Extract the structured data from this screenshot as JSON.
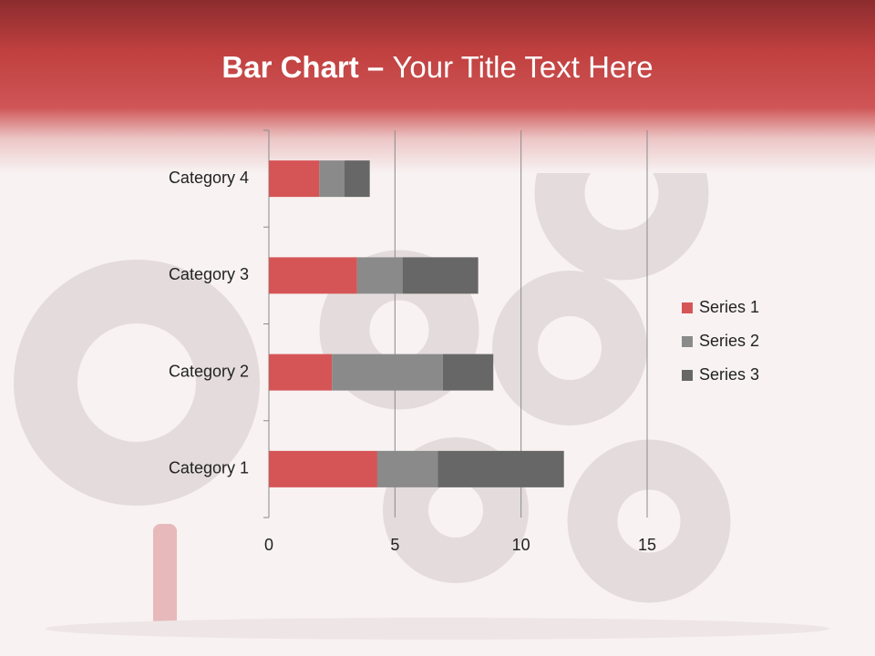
{
  "chart_data": {
    "type": "stacked-bar-horizontal",
    "title_parts": [
      "Bar Chart – ",
      "Your Title Text Here"
    ],
    "categories": [
      "Category 1",
      "Category 2",
      "Category 3",
      "Category 4"
    ],
    "series": [
      {
        "name": "Series 1",
        "color": "#d55557",
        "values": [
          4.3,
          2.5,
          3.5,
          2.0
        ]
      },
      {
        "name": "Series 2",
        "color": "#8a8a8a",
        "values": [
          2.4,
          4.4,
          1.8,
          1.0
        ]
      },
      {
        "name": "Series 3",
        "color": "#676767",
        "values": [
          5.0,
          2.0,
          3.0,
          1.0
        ]
      }
    ],
    "xlim": [
      0,
      15
    ],
    "xticks": [
      0,
      5,
      10,
      15
    ],
    "grid": true,
    "legend": "right"
  }
}
